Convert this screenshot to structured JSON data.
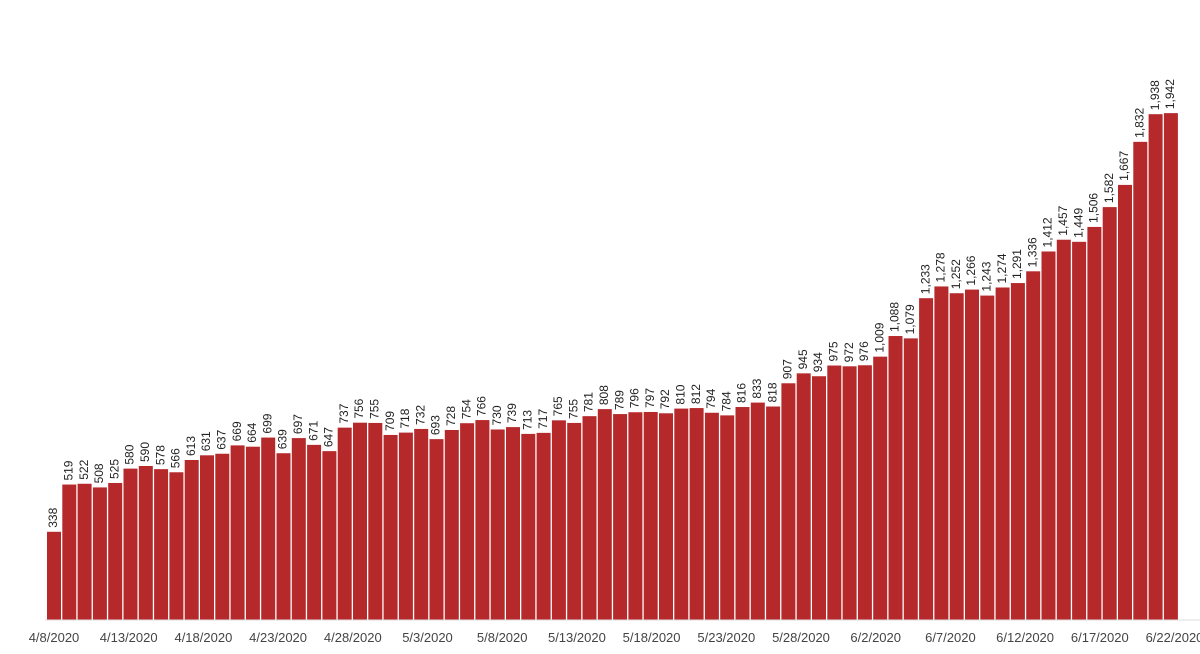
{
  "chart_data": {
    "type": "bar",
    "color": "#b5292b",
    "values": [
      338,
      519,
      522,
      508,
      525,
      580,
      590,
      578,
      566,
      613,
      631,
      637,
      669,
      664,
      699,
      639,
      697,
      671,
      647,
      737,
      756,
      755,
      709,
      718,
      732,
      693,
      728,
      754,
      766,
      730,
      739,
      713,
      717,
      765,
      755,
      781,
      808,
      789,
      796,
      797,
      792,
      810,
      812,
      794,
      784,
      816,
      833,
      818,
      907,
      945,
      934,
      975,
      972,
      976,
      1009,
      1088,
      1079,
      1233,
      1278,
      1252,
      1266,
      1243,
      1274,
      1291,
      1336,
      1412,
      1457,
      1449,
      1506,
      1582,
      1667,
      1832,
      1938,
      1942
    ],
    "value_labels": [
      "338",
      "519",
      "522",
      "508",
      "525",
      "580",
      "590",
      "578",
      "566",
      "613",
      "631",
      "637",
      "669",
      "664",
      "699",
      "639",
      "697",
      "671",
      "647",
      "737",
      "756",
      "755",
      "709",
      "718",
      "732",
      "693",
      "728",
      "754",
      "766",
      "730",
      "739",
      "713",
      "717",
      "765",
      "755",
      "781",
      "808",
      "789",
      "796",
      "797",
      "792",
      "810",
      "812",
      "794",
      "784",
      "816",
      "833",
      "818",
      "907",
      "945",
      "934",
      "975",
      "972",
      "976",
      "1,009",
      "1,088",
      "1,079",
      "1,233",
      "1,278",
      "1,252",
      "1,266",
      "1,243",
      "1,274",
      "1,291",
      "1,336",
      "1,412",
      "1,457",
      "1,449",
      "1,506",
      "1,582",
      "1,667",
      "1,832",
      "1,938",
      "1,942"
    ],
    "xticks": [
      "4/8/2020",
      "4/13/2020",
      "4/18/2020",
      "4/23/2020",
      "4/28/2020",
      "5/3/2020",
      "5/8/2020",
      "5/13/2020",
      "5/18/2020",
      "5/23/2020",
      "5/28/2020",
      "6/2/2020",
      "6/7/2020",
      "6/12/2020",
      "6/17/2020",
      "6/22/2020"
    ],
    "ylim": [
      0,
      2000
    ]
  }
}
